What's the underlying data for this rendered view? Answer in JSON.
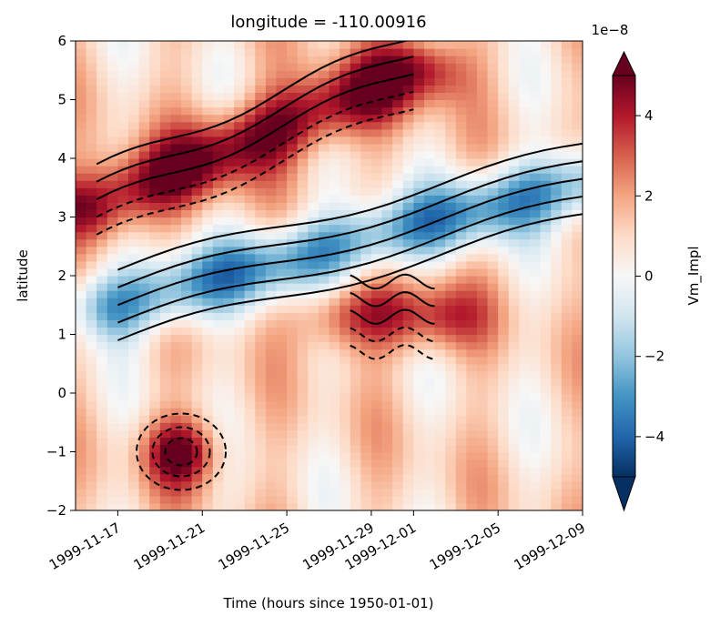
{
  "chart_data": {
    "type": "heatmap",
    "title": "longitude = -110.00916",
    "xlabel": "Time (hours since 1950-01-01)",
    "ylabel": "latitude",
    "ylim": [
      -2,
      6
    ],
    "yticks": [
      -2,
      -1,
      0,
      1,
      2,
      3,
      4,
      5,
      6
    ],
    "xticks": [
      {
        "date": "1999-11-17",
        "label": "1999-11-17"
      },
      {
        "date": "1999-11-21",
        "label": "1999-11-21"
      },
      {
        "date": "1999-11-25",
        "label": "1999-11-25"
      },
      {
        "date": "1999-11-29",
        "label": "1999-11-29"
      },
      {
        "date": "1999-12-01",
        "label": "1999-12-01"
      },
      {
        "date": "1999-12-05",
        "label": "1999-12-05"
      },
      {
        "date": "1999-12-09",
        "label": "1999-12-09"
      }
    ],
    "xlim": [
      "1999-11-15",
      "1999-12-09"
    ],
    "colorbar": {
      "label": "Vm_Impl",
      "multiplier": "1e−8",
      "range": [
        -5,
        5
      ],
      "ticks": [
        4,
        2,
        0,
        -2,
        -4
      ],
      "tick_labels": [
        "4",
        "2",
        "0",
        "−2",
        "−4"
      ],
      "colormap": "RdBu_r",
      "extend": "both"
    },
    "colormap_stops": [
      "#053061",
      "#2166ac",
      "#4393c3",
      "#92c5de",
      "#d1e5f0",
      "#f7f7f7",
      "#fddbc7",
      "#f4a582",
      "#d6604d",
      "#b2182b",
      "#67001f"
    ],
    "overlay": "black contour lines (dashed = negative)",
    "features": [
      {
        "kind": "blue band",
        "from": [
          "1999-11-17",
          1.5
        ],
        "to": [
          "1999-12-09",
          3.6
        ],
        "value": -4
      },
      {
        "kind": "red band",
        "from": [
          "1999-11-16",
          3.2
        ],
        "to": [
          "1999-12-01",
          5.5
        ],
        "value": 4
      },
      {
        "kind": "red band",
        "from": [
          "1999-11-28",
          1.3
        ],
        "to": [
          "1999-12-02",
          1.3
        ],
        "value": 3
      },
      {
        "kind": "red patch",
        "center": [
          "1999-11-20",
          -1.0
        ],
        "value": 4
      }
    ]
  }
}
